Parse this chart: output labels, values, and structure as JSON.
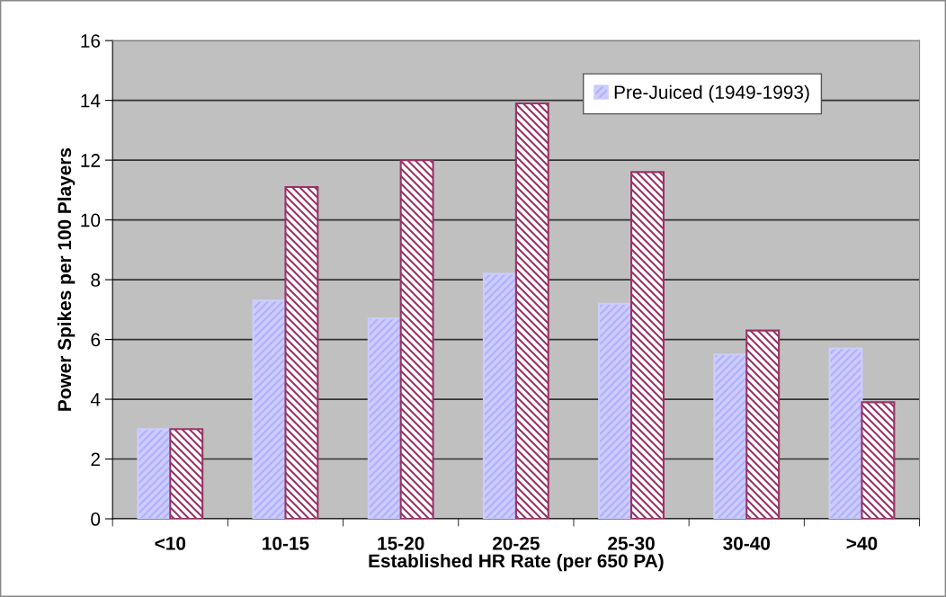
{
  "chart_data": {
    "type": "bar",
    "xlabel": "Established HR Rate (per 650 PA)",
    "ylabel": "Power Spikes per 100 Players",
    "categories": [
      "<10",
      "10-15",
      "15-20",
      "20-25",
      "25-30",
      "30-40",
      ">40"
    ],
    "series": [
      {
        "name": "Pre-Juiced (1949-1993)",
        "color": "#ccccff",
        "values": [
          3.0,
          7.3,
          6.7,
          8.2,
          7.2,
          5.5,
          5.7
        ]
      },
      {
        "color": "#993366",
        "values": [
          3.0,
          11.1,
          12.0,
          13.9,
          11.6,
          6.3,
          3.9
        ]
      }
    ],
    "ylim": [
      0,
      16
    ],
    "yticks": [
      0,
      2,
      4,
      6,
      8,
      10,
      12,
      14,
      16
    ],
    "grid": "y",
    "legend": "top right"
  }
}
